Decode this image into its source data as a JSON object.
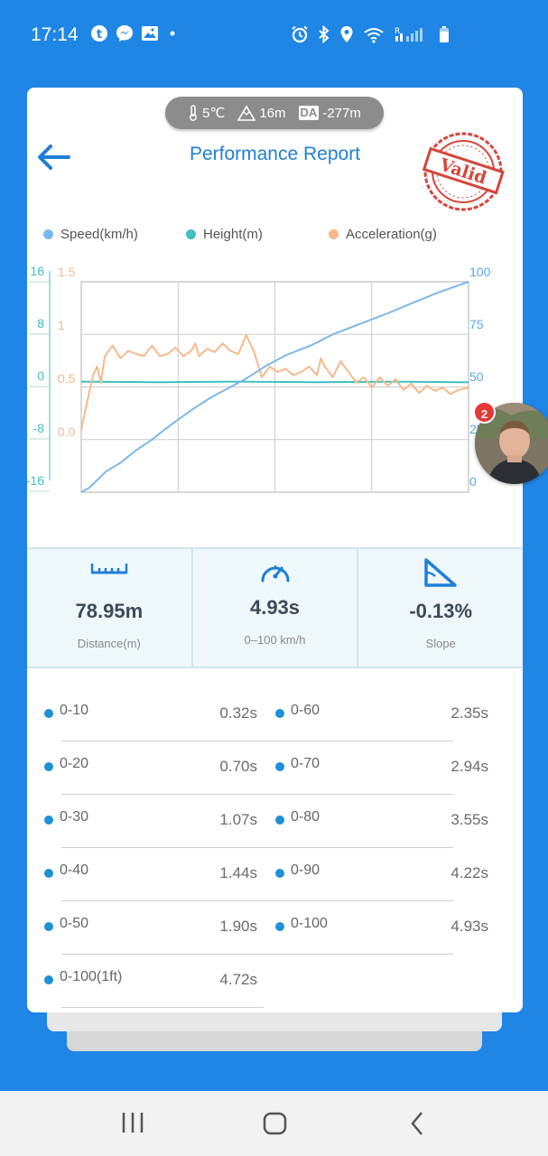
{
  "status_bar": {
    "time": "17:14",
    "left_icons": [
      "tiktok-icon",
      "messenger-icon",
      "gallery-icon",
      "dot-icon"
    ],
    "right_icons": [
      "alarm-icon",
      "bluetooth-icon",
      "location-icon",
      "wifi-icon",
      "signal-icon",
      "battery-icon"
    ]
  },
  "weather": {
    "temperature": "5℃",
    "altitude": "16m",
    "da_label": "DA",
    "density_altitude": "-277m"
  },
  "header": {
    "title": "Performance Report",
    "stamp_text": "Valid"
  },
  "chart_data": {
    "type": "line",
    "x_axis": "elapsed time (unlabeled)",
    "x_range": [
      0,
      4.93
    ],
    "series": [
      {
        "name": "Speed(km/h)",
        "color": "#7bb8ea",
        "axis": "right",
        "points": [
          [
            0,
            0
          ],
          [
            0.1,
            2
          ],
          [
            0.32,
            10
          ],
          [
            0.5,
            14
          ],
          [
            0.7,
            20
          ],
          [
            0.9,
            25
          ],
          [
            1.07,
            30
          ],
          [
            1.25,
            35
          ],
          [
            1.44,
            40
          ],
          [
            1.65,
            45
          ],
          [
            1.9,
            50
          ],
          [
            2.1,
            54
          ],
          [
            2.35,
            60
          ],
          [
            2.6,
            65
          ],
          [
            2.94,
            70
          ],
          [
            3.2,
            75
          ],
          [
            3.55,
            80
          ],
          [
            3.9,
            85
          ],
          [
            4.22,
            90
          ],
          [
            4.55,
            95
          ],
          [
            4.93,
            100
          ]
        ]
      },
      {
        "name": "Height(m)",
        "color": "#3fbfbf",
        "axis": "left_outer",
        "points": [
          [
            0,
            -1.5
          ],
          [
            1,
            -1.6
          ],
          [
            2,
            -1.5
          ],
          [
            3,
            -1.6
          ],
          [
            4,
            -1.5
          ],
          [
            4.93,
            -1.6
          ]
        ]
      },
      {
        "name": "Acceleration(g)",
        "color": "#f7b98a",
        "axis": "left_inner",
        "points": [
          [
            0,
            0
          ],
          [
            0.07,
            0.25
          ],
          [
            0.15,
            0.52
          ],
          [
            0.2,
            0.6
          ],
          [
            0.25,
            0.45
          ],
          [
            0.3,
            0.7
          ],
          [
            0.4,
            0.8
          ],
          [
            0.5,
            0.68
          ],
          [
            0.6,
            0.75
          ],
          [
            0.7,
            0.72
          ],
          [
            0.8,
            0.7
          ],
          [
            0.9,
            0.8
          ],
          [
            1.0,
            0.7
          ],
          [
            1.1,
            0.72
          ],
          [
            1.2,
            0.78
          ],
          [
            1.3,
            0.7
          ],
          [
            1.4,
            0.75
          ],
          [
            1.45,
            0.82
          ],
          [
            1.5,
            0.7
          ],
          [
            1.6,
            0.77
          ],
          [
            1.7,
            0.74
          ],
          [
            1.8,
            0.82
          ],
          [
            1.9,
            0.75
          ],
          [
            2.0,
            0.72
          ],
          [
            2.1,
            0.9
          ],
          [
            2.2,
            0.74
          ],
          [
            2.3,
            0.5
          ],
          [
            2.4,
            0.6
          ],
          [
            2.5,
            0.55
          ],
          [
            2.6,
            0.58
          ],
          [
            2.7,
            0.52
          ],
          [
            2.8,
            0.55
          ],
          [
            2.9,
            0.6
          ],
          [
            3.0,
            0.52
          ],
          [
            3.05,
            0.68
          ],
          [
            3.1,
            0.6
          ],
          [
            3.2,
            0.5
          ],
          [
            3.3,
            0.65
          ],
          [
            3.4,
            0.55
          ],
          [
            3.5,
            0.45
          ],
          [
            3.6,
            0.5
          ],
          [
            3.7,
            0.4
          ],
          [
            3.8,
            0.5
          ],
          [
            3.9,
            0.42
          ],
          [
            4.0,
            0.48
          ],
          [
            4.1,
            0.38
          ],
          [
            4.2,
            0.44
          ],
          [
            4.3,
            0.35
          ],
          [
            4.4,
            0.42
          ],
          [
            4.5,
            0.37
          ],
          [
            4.6,
            0.4
          ],
          [
            4.7,
            0.34
          ],
          [
            4.8,
            0.38
          ],
          [
            4.93,
            0.4
          ]
        ]
      }
    ],
    "axes": {
      "left_outer": {
        "ticks": [
          "16",
          "8",
          "0",
          "-8",
          "-16"
        ],
        "range": [
          -16,
          16
        ],
        "color": "#3fbfbf"
      },
      "left_inner": {
        "ticks": [
          "1.5",
          "1",
          "0.5",
          "0.0"
        ],
        "range": [
          0,
          1.5
        ],
        "color": "#f7b98a"
      },
      "right": {
        "ticks": [
          "100",
          "75",
          "50",
          "25",
          "0"
        ],
        "range": [
          0,
          100
        ],
        "color": "#5aa9e6"
      }
    },
    "grid": true,
    "legend_position": "top"
  },
  "stats": [
    {
      "icon": "ruler-icon",
      "value": "78.95m",
      "label": "Distance(m)"
    },
    {
      "icon": "speedometer-icon",
      "value": "4.93s",
      "label": "0–100 km/h"
    },
    {
      "icon": "slope-icon",
      "value": "-0.13%",
      "label": "Slope"
    }
  ],
  "splits": [
    {
      "label": "0-10",
      "value": "0.32s"
    },
    {
      "label": "0-60",
      "value": "2.35s"
    },
    {
      "label": "0-20",
      "value": "0.70s"
    },
    {
      "label": "0-70",
      "value": "2.94s"
    },
    {
      "label": "0-30",
      "value": "1.07s"
    },
    {
      "label": "0-80",
      "value": "3.55s"
    },
    {
      "label": "0-40",
      "value": "1.44s"
    },
    {
      "label": "0-90",
      "value": "4.22s"
    },
    {
      "label": "0-50",
      "value": "1.90s"
    },
    {
      "label": "0-100",
      "value": "4.93s"
    },
    {
      "label": "0-100(1ft)",
      "value": "4.72s"
    }
  ],
  "chat_head": {
    "badge_count": "2"
  },
  "nav_bar": {
    "buttons": [
      "recents-icon",
      "home-icon",
      "back-icon"
    ]
  }
}
